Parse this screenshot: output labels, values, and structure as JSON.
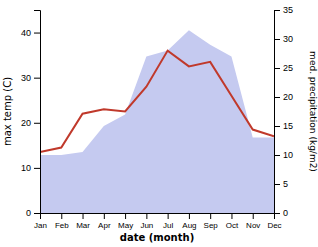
{
  "chart_data": {
    "type": "line",
    "xlabel": "date (month)",
    "ylabel": "max temp (C)",
    "y2label": "med. precipitation (kg/m2)",
    "categories": [
      "Jan",
      "Feb",
      "Mar",
      "Apr",
      "May",
      "Jun",
      "Jul",
      "Aug",
      "Sep",
      "Oct",
      "Nov",
      "Dec"
    ],
    "series": [
      {
        "type": "area",
        "axis": "y2",
        "color": "#c5caf0",
        "values": [
          10.0,
          10.0,
          10.5,
          15.0,
          17.0,
          27.0,
          28.0,
          31.5,
          29.0,
          27.0,
          13.0,
          13.0
        ]
      },
      {
        "type": "line",
        "color": "#c0392b",
        "values": [
          13.5,
          14.5,
          22.0,
          23.0,
          22.5,
          28.0,
          36.0,
          32.5,
          33.5,
          26.0,
          18.5,
          17.0
        ]
      }
    ],
    "ylim": [
      0,
      45
    ],
    "yticks": [
      0,
      10,
      20,
      30,
      40
    ],
    "y2lim": [
      0,
      35
    ],
    "y2ticks": [
      0,
      5,
      10,
      15,
      20,
      25,
      30,
      35
    ],
    "grid": false
  }
}
